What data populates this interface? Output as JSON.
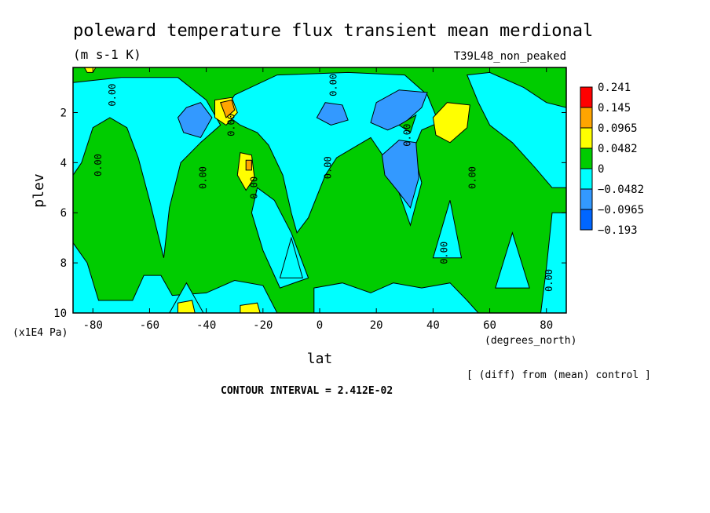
{
  "chart_data": {
    "type": "heatmap",
    "title": "poleward temperature flux transient mean merdional",
    "units": "(m s-1 K)",
    "run_label": "T39L48_non_peaked",
    "xlabel": "lat",
    "x_units": "(degrees_north)",
    "ylabel": "plev",
    "y_units": "(x1E4 Pa)",
    "x_ticks": [
      -80,
      -60,
      -40,
      -20,
      0,
      20,
      40,
      60,
      80
    ],
    "y_ticks": [
      2,
      4,
      6,
      8,
      10
    ],
    "xlim": [
      -87,
      87
    ],
    "ylim": [
      10,
      0.2
    ],
    "contour_interval_text": "CONTOUR INTERVAL = 2.412E-02",
    "footnote": "[ (diff) from (mean) control ]",
    "contour_label": "0.00",
    "colorbar": {
      "levels": [
        "0.241",
        "0.145",
        "0.0965",
        "0.0482",
        "0",
        "−0.0482",
        "−0.0965",
        "−0.193"
      ],
      "colors": [
        "#ff0000",
        "#ffa500",
        "#ffff00",
        "#00cc00",
        "#00ffff",
        "#3399ff",
        "#0066ff"
      ]
    },
    "regions": [
      {
        "name": "background",
        "color": "#00cc00",
        "points": [
          [
            -87,
            0.2
          ],
          [
            87,
            0.2
          ],
          [
            87,
            10
          ],
          [
            -87,
            10
          ]
        ]
      },
      {
        "name": "cyan-west",
        "color": "#00ffff",
        "points": [
          [
            -87,
            0.8
          ],
          [
            -70,
            0.6
          ],
          [
            -50,
            0.6
          ],
          [
            -40,
            1.5
          ],
          [
            -35,
            2.5
          ],
          [
            -42,
            3.2
          ],
          [
            -49,
            4.0
          ],
          [
            -53,
            5.8
          ],
          [
            -55,
            7.8
          ],
          [
            -60,
            5.5
          ],
          [
            -64,
            3.8
          ],
          [
            -68,
            2.6
          ],
          [
            -74,
            2.2
          ],
          [
            -80,
            2.6
          ],
          [
            -84,
            4.0
          ],
          [
            -87,
            4.5
          ]
        ]
      },
      {
        "name": "cyan-central",
        "color": "#00ffff",
        "points": [
          [
            -30,
            1.3
          ],
          [
            -15,
            0.5
          ],
          [
            10,
            0.4
          ],
          [
            30,
            0.5
          ],
          [
            38,
            1.3
          ],
          [
            42,
            2.4
          ],
          [
            36,
            2.7
          ],
          [
            33,
            3.5
          ],
          [
            36,
            4.8
          ],
          [
            32,
            6.5
          ],
          [
            28,
            5.2
          ],
          [
            24,
            4.0
          ],
          [
            18,
            3.0
          ],
          [
            12,
            3.4
          ],
          [
            6,
            3.8
          ],
          [
            2,
            4.5
          ],
          [
            -4,
            6.2
          ],
          [
            -8,
            6.8
          ],
          [
            -10,
            6.0
          ],
          [
            -13,
            4.5
          ],
          [
            -18,
            3.3
          ],
          [
            -22,
            2.8
          ],
          [
            -28,
            2.5
          ],
          [
            -34,
            2.0
          ]
        ]
      },
      {
        "name": "cyan-south-mid",
        "color": "#00ffff",
        "points": [
          [
            -22,
            5.0
          ],
          [
            -16,
            5.5
          ],
          [
            -10,
            6.8
          ],
          [
            -4,
            8.6
          ],
          [
            -14,
            9.0
          ],
          [
            -20,
            7.5
          ],
          [
            -24,
            6.0
          ]
        ]
      },
      {
        "name": "cyan-bottom-west",
        "color": "#00ffff",
        "points": [
          [
            -87,
            7.2
          ],
          [
            -82,
            8.0
          ],
          [
            -78,
            9.5
          ],
          [
            -66,
            9.5
          ],
          [
            -62,
            8.5
          ],
          [
            -56,
            8.5
          ],
          [
            -52,
            9.3
          ],
          [
            -40,
            9.2
          ],
          [
            -30,
            8.7
          ],
          [
            -20,
            8.9
          ],
          [
            -15,
            10
          ],
          [
            -87,
            10
          ]
        ]
      },
      {
        "name": "cyan-bottom-center",
        "color": "#00ffff",
        "points": [
          [
            -2,
            9.0
          ],
          [
            8,
            8.8
          ],
          [
            18,
            9.2
          ],
          [
            26,
            8.8
          ],
          [
            36,
            9.0
          ],
          [
            46,
            8.8
          ],
          [
            52,
            9.5
          ],
          [
            56,
            10
          ],
          [
            -2,
            10
          ]
        ]
      },
      {
        "name": "cyan-wedge-a",
        "color": "#00ffff",
        "points": [
          [
            -47,
            8.8
          ],
          [
            -53,
            10
          ],
          [
            -41,
            10
          ]
        ]
      },
      {
        "name": "cyan-wedge-b",
        "color": "#00ffff",
        "points": [
          [
            -10,
            7.0
          ],
          [
            -14,
            8.6
          ],
          [
            -6,
            8.6
          ]
        ]
      },
      {
        "name": "cyan-wedge-c",
        "color": "#00ffff",
        "points": [
          [
            46,
            5.5
          ],
          [
            40,
            7.8
          ],
          [
            50,
            7.8
          ]
        ]
      },
      {
        "name": "cyan-wedge-d",
        "color": "#00ffff",
        "points": [
          [
            68,
            6.8
          ],
          [
            62,
            9.0
          ],
          [
            74,
            9.0
          ]
        ]
      },
      {
        "name": "cyan-east",
        "color": "#00ffff",
        "points": [
          [
            52,
            0.5
          ],
          [
            60,
            0.4
          ],
          [
            72,
            1.0
          ],
          [
            80,
            1.6
          ],
          [
            87,
            1.8
          ],
          [
            87,
            5.0
          ],
          [
            82,
            5.0
          ],
          [
            76,
            4.2
          ],
          [
            68,
            3.2
          ],
          [
            60,
            2.5
          ],
          [
            56,
            1.6
          ]
        ]
      },
      {
        "name": "cyan-east-bottom",
        "color": "#00ffff",
        "points": [
          [
            82,
            6.0
          ],
          [
            87,
            6.0
          ],
          [
            87,
            10
          ],
          [
            78,
            10
          ],
          [
            80,
            8.2
          ]
        ]
      },
      {
        "name": "blue-a",
        "color": "#3399ff",
        "points": [
          [
            -47,
            1.8
          ],
          [
            -42,
            1.6
          ],
          [
            -38,
            2.2
          ],
          [
            -42,
            3.0
          ],
          [
            -48,
            2.8
          ],
          [
            -50,
            2.2
          ]
        ]
      },
      {
        "name": "blue-b",
        "color": "#3399ff",
        "points": [
          [
            2,
            1.6
          ],
          [
            8,
            1.7
          ],
          [
            10,
            2.3
          ],
          [
            4,
            2.5
          ],
          [
            -1,
            2.2
          ]
        ]
      },
      {
        "name": "blue-c",
        "color": "#3399ff",
        "points": [
          [
            20,
            1.6
          ],
          [
            28,
            1.1
          ],
          [
            38,
            1.2
          ],
          [
            36,
            1.8
          ],
          [
            30,
            2.4
          ],
          [
            24,
            2.7
          ],
          [
            18,
            2.4
          ]
        ]
      },
      {
        "name": "blue-d",
        "color": "#3399ff",
        "points": [
          [
            22,
            3.7
          ],
          [
            28,
            3.1
          ],
          [
            34,
            3.2
          ],
          [
            35,
            4.6
          ],
          [
            32,
            5.8
          ],
          [
            28,
            5.2
          ],
          [
            23,
            4.5
          ]
        ]
      },
      {
        "name": "green-in-cyan",
        "color": "#00cc00",
        "points": [
          [
            28,
            2.5
          ],
          [
            34,
            2.1
          ],
          [
            32,
            2.8
          ]
        ]
      },
      {
        "name": "yellow-a",
        "color": "#ffff00",
        "points": [
          [
            -37,
            1.5
          ],
          [
            -31,
            1.4
          ],
          [
            -29,
            2.0
          ],
          [
            -33,
            2.5
          ],
          [
            -37,
            2.2
          ]
        ]
      },
      {
        "name": "yellow-b",
        "color": "#ffff00",
        "points": [
          [
            -28,
            3.6
          ],
          [
            -24,
            3.7
          ],
          [
            -23,
            4.6
          ],
          [
            -26,
            5.1
          ],
          [
            -29,
            4.5
          ]
        ]
      },
      {
        "name": "yellow-c",
        "color": "#ffff00",
        "points": [
          [
            40,
            2.2
          ],
          [
            45,
            1.6
          ],
          [
            53,
            1.7
          ],
          [
            52,
            2.6
          ],
          [
            46,
            3.2
          ],
          [
            41,
            2.9
          ]
        ]
      },
      {
        "name": "yellow-d",
        "color": "#ffff00",
        "points": [
          [
            -50,
            9.6
          ],
          [
            -45,
            9.5
          ],
          [
            -44,
            10
          ],
          [
            -50,
            10
          ]
        ]
      },
      {
        "name": "yellow-e",
        "color": "#ffff00",
        "points": [
          [
            -28,
            9.7
          ],
          [
            -22,
            9.6
          ],
          [
            -21,
            10
          ],
          [
            -28,
            10
          ]
        ]
      },
      {
        "name": "yellow-f",
        "color": "#ffff00",
        "points": [
          [
            -83,
            0.2
          ],
          [
            -79,
            0.2
          ],
          [
            -80,
            0.4
          ],
          [
            -82,
            0.4
          ]
        ]
      },
      {
        "name": "orange-a",
        "color": "#ffa500",
        "points": [
          [
            -35,
            1.6
          ],
          [
            -31,
            1.5
          ],
          [
            -30,
            1.9
          ],
          [
            -33,
            2.2
          ]
        ]
      },
      {
        "name": "orange-b",
        "color": "#ffa500",
        "points": [
          [
            -26,
            3.9
          ],
          [
            -24,
            3.9
          ],
          [
            -24,
            4.3
          ],
          [
            -26,
            4.3
          ]
        ]
      }
    ],
    "contour_line_labels": [
      [
        -77,
        4.1
      ],
      [
        -72,
        1.3
      ],
      [
        -40,
        4.6
      ],
      [
        -30,
        2.5
      ],
      [
        -22,
        5.0
      ],
      [
        4,
        4.2
      ],
      [
        6,
        0.9
      ],
      [
        32,
        2.9
      ],
      [
        45,
        7.6
      ],
      [
        55,
        4.6
      ],
      [
        82,
        8.7
      ]
    ]
  }
}
